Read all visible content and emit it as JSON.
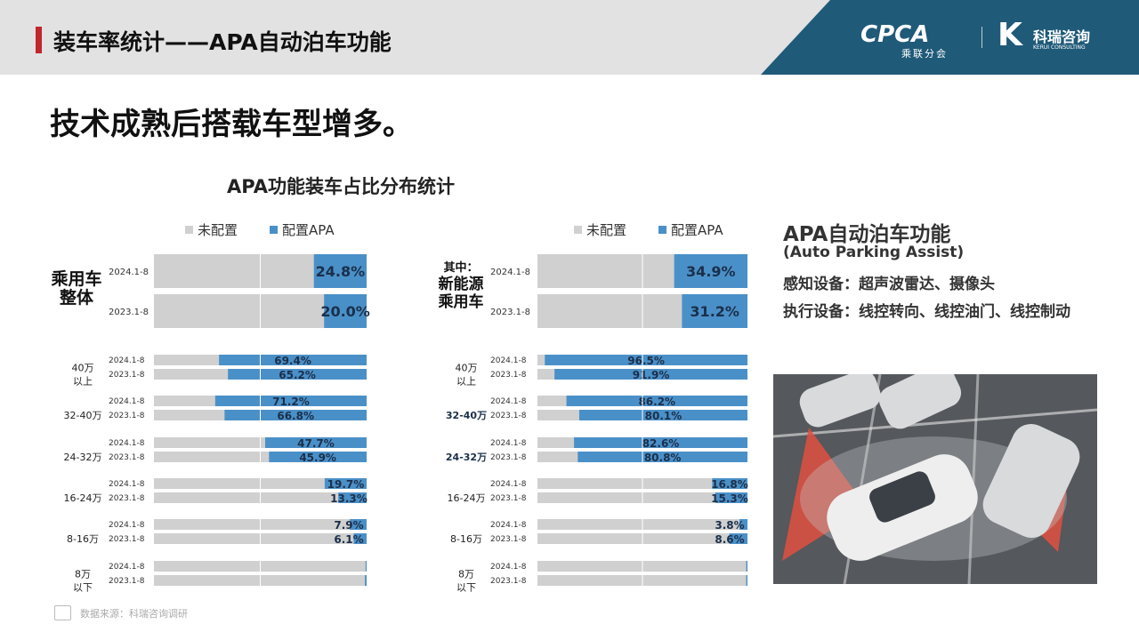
{
  "header": {
    "title": "装车率统计——APA自动泊车功能",
    "logo_cpca": "CPCA",
    "logo_cpca_sub": "乘联分会",
    "logo_kr_name": "科瑞咨询",
    "logo_kr_sub": "KERUI CONSULTING"
  },
  "subtitle": "技术成熟后搭载车型增多。",
  "chart_title": "APA功能装车占比分布统计",
  "colors": {
    "unconfigured": "#d0d0d0",
    "configured": "#4a90c8",
    "accent": "#c0262d",
    "brand": "#1f5a78"
  },
  "chart_data": [
    {
      "type": "bar",
      "orientation": "horizontal",
      "stacked_percent": true,
      "legend": [
        "未配置",
        "配置APA"
      ],
      "legend_placement": "top-right",
      "xlim": [
        0,
        100
      ],
      "overall": {
        "label_lines": [
          "乘用车",
          "整体"
        ],
        "rows": [
          {
            "period": "2024.1-8",
            "value": 24.8,
            "label": "24.8%"
          },
          {
            "period": "2023.1-8",
            "value": 20.0,
            "label": "20.0%"
          }
        ]
      },
      "groups": [
        {
          "label_lines": [
            "40万",
            "以上"
          ],
          "rows": [
            {
              "period": "2024.1-8",
              "value": 69.4,
              "label": "69.4%"
            },
            {
              "period": "2023.1-8",
              "value": 65.2,
              "label": "65.2%"
            }
          ]
        },
        {
          "label_lines": [
            "32-40万"
          ],
          "rows": [
            {
              "period": "2024.1-8",
              "value": 71.2,
              "label": "71.2%"
            },
            {
              "period": "2023.1-8",
              "value": 66.8,
              "label": "66.8%"
            }
          ]
        },
        {
          "label_lines": [
            "24-32万"
          ],
          "rows": [
            {
              "period": "2024.1-8",
              "value": 47.7,
              "label": "47.7%"
            },
            {
              "period": "2023.1-8",
              "value": 45.9,
              "label": "45.9%"
            }
          ]
        },
        {
          "label_lines": [
            "16-24万"
          ],
          "rows": [
            {
              "period": "2024.1-8",
              "value": 19.7,
              "label": "19.7%"
            },
            {
              "period": "2023.1-8",
              "value": 13.3,
              "label": "13.3%"
            }
          ]
        },
        {
          "label_lines": [
            "8-16万"
          ],
          "rows": [
            {
              "period": "2024.1-8",
              "value": 7.9,
              "label": "7.9%"
            },
            {
              "period": "2023.1-8",
              "value": 6.1,
              "label": "6.1%"
            }
          ]
        },
        {
          "label_lines": [
            "8万",
            "以下"
          ],
          "rows": [
            {
              "period": "2024.1-8",
              "value": 0.5,
              "label": ""
            },
            {
              "period": "2023.1-8",
              "value": 0.8,
              "label": ""
            }
          ]
        }
      ]
    },
    {
      "type": "bar",
      "orientation": "horizontal",
      "stacked_percent": true,
      "legend": [
        "未配置",
        "配置APA"
      ],
      "legend_placement": "top-right",
      "xlim": [
        0,
        100
      ],
      "overall": {
        "label_lines": [
          "其中：",
          "新能源",
          "乘用车"
        ],
        "rows": [
          {
            "period": "2024.1-8",
            "value": 34.9,
            "label": "34.9%"
          },
          {
            "period": "2023.1-8",
            "value": 31.2,
            "label": "31.2%"
          }
        ]
      },
      "groups": [
        {
          "label_lines": [
            "40万",
            "以上"
          ],
          "rows": [
            {
              "period": "2024.1-8",
              "value": 96.5,
              "label": "96.5%"
            },
            {
              "period": "2023.1-8",
              "value": 91.9,
              "label": "91.9%"
            }
          ]
        },
        {
          "label_lines": [
            "32-40万"
          ],
          "rows": [
            {
              "period": "2024.1-8",
              "value": 86.2,
              "label": "86.2%"
            },
            {
              "period": "2023.1-8",
              "value": 80.1,
              "label": "80.1%"
            }
          ]
        },
        {
          "label_lines": [
            "24-32万"
          ],
          "rows": [
            {
              "period": "2024.1-8",
              "value": 82.6,
              "label": "82.6%"
            },
            {
              "period": "2023.1-8",
              "value": 80.8,
              "label": "80.8%"
            }
          ]
        },
        {
          "label_lines": [
            "16-24万"
          ],
          "rows": [
            {
              "period": "2024.1-8",
              "value": 16.8,
              "label": "16.8%"
            },
            {
              "period": "2023.1-8",
              "value": 15.3,
              "label": "15.3%"
            }
          ]
        },
        {
          "label_lines": [
            "8-16万"
          ],
          "rows": [
            {
              "period": "2024.1-8",
              "value": 3.8,
              "label": "3.8%"
            },
            {
              "period": "2023.1-8",
              "value": 8.6,
              "label": "8.6%"
            }
          ]
        },
        {
          "label_lines": [
            "8万",
            "以下"
          ],
          "rows": [
            {
              "period": "2024.1-8",
              "value": 0.6,
              "label": ""
            },
            {
              "period": "2023.1-8",
              "value": 0.6,
              "label": ""
            }
          ]
        }
      ]
    }
  ],
  "info": {
    "title": "APA自动泊车功能",
    "english": "(Auto Parking Assist)",
    "sensing": "感知设备：超声波雷达、摄像头",
    "execution": "执行设备：线控转向、线控油门、线控制动"
  },
  "source": "数据来源：科瑞咨询调研"
}
